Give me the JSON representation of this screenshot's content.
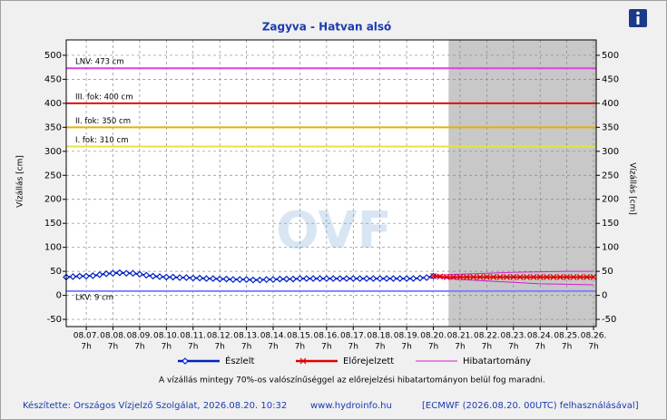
{
  "chart_data": {
    "type": "line",
    "title": "Zagyva - Hatvan alsó",
    "y_label": "Vízállás [cm]",
    "y2_label": "Vízállás [cm]",
    "watermark": "OVF",
    "xlim": [
      -0.75,
      19.1
    ],
    "xticks": [
      {
        "value": 0,
        "label": "08.07."
      },
      {
        "value": 1,
        "label": "08.08."
      },
      {
        "value": 2,
        "label": "08.09."
      },
      {
        "value": 3,
        "label": "08.10."
      },
      {
        "value": 4,
        "label": "08.11."
      },
      {
        "value": 5,
        "label": "08.12."
      },
      {
        "value": 6,
        "label": "08.13."
      },
      {
        "value": 7,
        "label": "08.14."
      },
      {
        "value": 8,
        "label": "08.15."
      },
      {
        "value": 9,
        "label": "08.16."
      },
      {
        "value": 10,
        "label": "08.17."
      },
      {
        "value": 11,
        "label": "08.18."
      },
      {
        "value": 12,
        "label": "08.19."
      },
      {
        "value": 13,
        "label": "08.20."
      },
      {
        "value": 14,
        "label": "08.21."
      },
      {
        "value": 15,
        "label": "08.22."
      },
      {
        "value": 16,
        "label": "08.23."
      },
      {
        "value": 17,
        "label": "08.24."
      },
      {
        "value": 18,
        "label": "08.25."
      },
      {
        "value": 19,
        "label": "08.26."
      }
    ],
    "xtick_sublabels": [
      "7h",
      "7h",
      "7h",
      "7h",
      "7h",
      "7h",
      "7h",
      "7h",
      "7h",
      "7h",
      "7h",
      "7h",
      "7h",
      "7h",
      "7h",
      "7h",
      "7h",
      "7h",
      "7h",
      "7h"
    ],
    "ylim": [
      -65,
      532
    ],
    "yticks": [
      -50,
      0,
      50,
      100,
      150,
      200,
      250,
      300,
      350,
      400,
      450,
      500
    ],
    "y2lim": [
      -65,
      532
    ],
    "y2ticks": [
      -50,
      0,
      50,
      100,
      150,
      200,
      250,
      300,
      350,
      400,
      450,
      500
    ],
    "grid": true,
    "forecast_shade_from": 13.57,
    "reference_lines": [
      {
        "label": "LNV: 473 cm",
        "value": 473,
        "color": "#e040e0"
      },
      {
        "label": "III. fok: 400 cm",
        "value": 400,
        "color": "#e01010"
      },
      {
        "label": "II. fok: 350 cm",
        "value": 350,
        "color": "#e8b000"
      },
      {
        "label": "I. fok: 310 cm",
        "value": 310,
        "color": "#e8e040"
      },
      {
        "label": "LKV: 9 cm",
        "value": 9,
        "color": "#8080ff"
      }
    ],
    "series": [
      {
        "name": "Észlelt",
        "color": "#0020c0",
        "marker": "diamond",
        "x": [
          -0.75,
          -0.5,
          -0.25,
          0,
          0.25,
          0.5,
          0.75,
          1,
          1.25,
          1.5,
          1.75,
          2,
          2.25,
          2.5,
          2.75,
          3,
          3.25,
          3.5,
          3.75,
          4,
          4.25,
          4.5,
          4.75,
          5,
          5.25,
          5.5,
          5.75,
          6,
          6.25,
          6.5,
          6.75,
          7,
          7.25,
          7.5,
          7.75,
          8,
          8.25,
          8.5,
          8.75,
          9,
          9.25,
          9.5,
          9.75,
          10,
          10.25,
          10.5,
          10.75,
          11,
          11.25,
          11.5,
          11.75,
          12,
          12.25,
          12.5,
          12.75,
          13
        ],
        "values": [
          38,
          39,
          40,
          40,
          41,
          43,
          45,
          46,
          47,
          46,
          46,
          44,
          42,
          40,
          39,
          38,
          38,
          37,
          37,
          36,
          36,
          35,
          35,
          34,
          34,
          33,
          33,
          33,
          32,
          32,
          33,
          33,
          34,
          34,
          34,
          35,
          35,
          35,
          35,
          35,
          35,
          35,
          35,
          35,
          35,
          35,
          35,
          35,
          35,
          35,
          35,
          35,
          35,
          36,
          37,
          40
        ]
      },
      {
        "name": "Előrejelzett",
        "color": "#e00000",
        "marker": "cross",
        "x": [
          13,
          13.25,
          13.5,
          13.75,
          14,
          14.25,
          14.5,
          14.75,
          15,
          15.25,
          15.5,
          15.75,
          16,
          16.25,
          16.5,
          16.75,
          17,
          17.25,
          17.5,
          17.75,
          18,
          18.25,
          18.5,
          18.75,
          19
        ],
        "values": [
          40,
          39,
          38,
          38,
          38,
          38,
          38,
          38,
          38,
          38,
          38,
          38,
          38,
          38,
          38,
          38,
          38,
          38,
          38,
          38,
          38,
          38,
          38,
          38,
          38
        ]
      }
    ],
    "error_band": {
      "name": "Hibatartomány",
      "color": "#d020d0",
      "x": [
        13,
        14,
        15,
        16,
        17,
        18,
        19
      ],
      "low": [
        38,
        33,
        30,
        27,
        24,
        23,
        22
      ],
      "high": [
        42,
        44,
        46,
        48,
        49,
        50,
        50
      ]
    },
    "note": "A vízállás mintegy 70%-os valószínűséggel az előrejelzési hibatartományon belül fog maradni.",
    "footer": {
      "left": "Készítette: Országos Vízjelző Szolgálat, 2026.08.20. 10:32",
      "center": "www.hydroinfo.hu",
      "right": "[ECMWF (2026.08.20. 00UTC) felhasználásával]"
    }
  }
}
